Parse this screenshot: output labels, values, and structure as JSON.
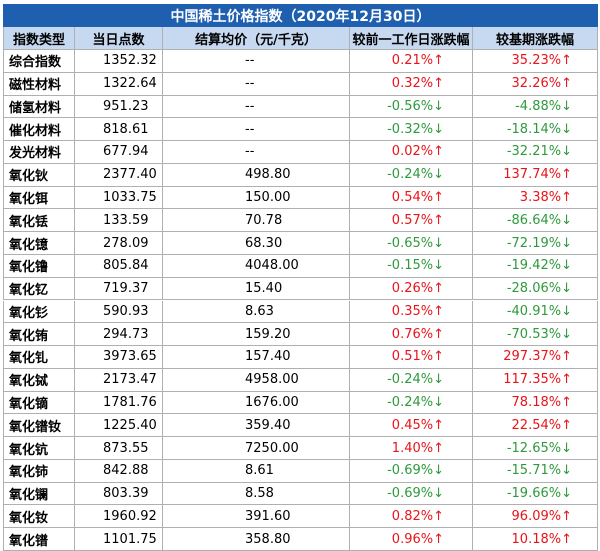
{
  "header": {
    "title": "中国稀土价格指数（2020年12月30日）"
  },
  "table": {
    "columns": [
      "指数类型",
      "当日点数",
      "结算均价（元/千克）",
      "较前一工作日涨跌幅",
      "较基期涨跌幅"
    ],
    "trend_colors": {
      "up": "#e8141a",
      "down": "#2e9a3c"
    },
    "rows": [
      {
        "cells": [
          "综合指数",
          "1352.32",
          "--",
          "0.21%↑",
          "35.23%↑"
        ],
        "trends": [
          "up",
          "up"
        ]
      },
      {
        "cells": [
          "磁性材料",
          "1322.64",
          "--",
          "0.32%↑",
          "32.26%↑"
        ],
        "trends": [
          "up",
          "up"
        ]
      },
      {
        "cells": [
          "储氢材料",
          "951.23",
          "--",
          "-0.56%↓",
          "-4.88%↓"
        ],
        "trends": [
          "down",
          "down"
        ]
      },
      {
        "cells": [
          "催化材料",
          "818.61",
          "--",
          "-0.32%↓",
          "-18.14%↓"
        ],
        "trends": [
          "down",
          "down"
        ]
      },
      {
        "cells": [
          "发光材料",
          "677.94",
          "--",
          "0.02%↑",
          "-32.21%↓"
        ],
        "trends": [
          "up",
          "down"
        ]
      },
      {
        "cells": [
          "氧化钬",
          "2377.40",
          "498.80",
          "-0.24%↓",
          "137.74%↑"
        ],
        "trends": [
          "down",
          "up"
        ]
      },
      {
        "cells": [
          "氧化铒",
          "1033.75",
          "150.00",
          "0.54%↑",
          "3.38%↑"
        ],
        "trends": [
          "up",
          "up"
        ]
      },
      {
        "cells": [
          "氧化铥",
          "133.59",
          "70.78",
          "0.57%↑",
          "-86.64%↓"
        ],
        "trends": [
          "up",
          "down"
        ]
      },
      {
        "cells": [
          "氧化镱",
          "278.09",
          "68.30",
          "-0.65%↓",
          "-72.19%↓"
        ],
        "trends": [
          "down",
          "down"
        ]
      },
      {
        "cells": [
          "氧化镥",
          "805.84",
          "4048.00",
          "-0.15%↓",
          "-19.42%↓"
        ],
        "trends": [
          "down",
          "down"
        ]
      },
      {
        "cells": [
          "氧化钇",
          "719.37",
          "15.40",
          "0.26%↑",
          "-28.06%↓"
        ],
        "trends": [
          "up",
          "down"
        ]
      },
      {
        "cells": [
          "氧化钐",
          "590.93",
          "8.63",
          "0.35%↑",
          "-40.91%↓"
        ],
        "trends": [
          "up",
          "down"
        ]
      },
      {
        "cells": [
          "氧化铕",
          "294.73",
          "159.20",
          "0.76%↑",
          "-70.53%↓"
        ],
        "trends": [
          "up",
          "down"
        ]
      },
      {
        "cells": [
          "氧化钆",
          "3973.65",
          "157.40",
          "0.51%↑",
          "297.37%↑"
        ],
        "trends": [
          "up",
          "up"
        ]
      },
      {
        "cells": [
          "氧化铽",
          "2173.47",
          "4958.00",
          "-0.24%↓",
          "117.35%↑"
        ],
        "trends": [
          "down",
          "up"
        ]
      },
      {
        "cells": [
          "氧化镝",
          "1781.76",
          "1676.00",
          "-0.24%↓",
          "78.18%↑"
        ],
        "trends": [
          "down",
          "up"
        ]
      },
      {
        "cells": [
          "氧化镨钕",
          "1225.40",
          "359.40",
          "0.45%↑",
          "22.54%↑"
        ],
        "trends": [
          "up",
          "up"
        ]
      },
      {
        "cells": [
          "氧化钪",
          "873.55",
          "7250.00",
          "1.40%↑",
          "-12.65%↓"
        ],
        "trends": [
          "up",
          "down"
        ]
      },
      {
        "cells": [
          "氧化铈",
          "842.88",
          "8.61",
          "-0.69%↓",
          "-15.71%↓"
        ],
        "trends": [
          "down",
          "down"
        ]
      },
      {
        "cells": [
          "氧化镧",
          "803.39",
          "8.58",
          "-0.69%↓",
          "-19.66%↓"
        ],
        "trends": [
          "down",
          "down"
        ]
      },
      {
        "cells": [
          "氧化钕",
          "1960.92",
          "391.60",
          "0.82%↑",
          "96.09%↑"
        ],
        "trends": [
          "up",
          "up"
        ]
      },
      {
        "cells": [
          "氧化镨",
          "1101.75",
          "358.80",
          "0.96%↑",
          "10.18%↑"
        ],
        "trends": [
          "up",
          "up"
        ]
      }
    ]
  }
}
